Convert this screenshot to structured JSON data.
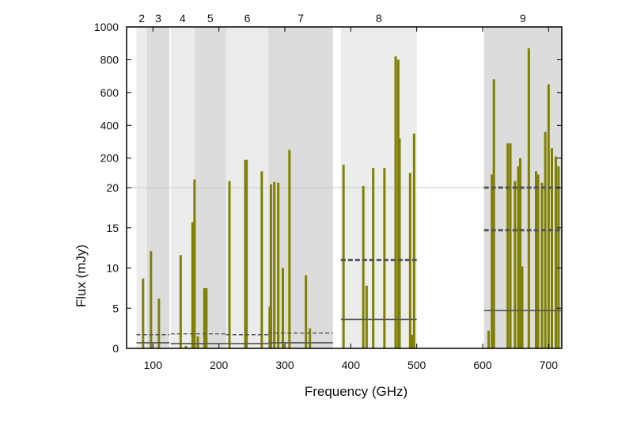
{
  "chart_data": {
    "type": "bar",
    "xlabel": "Frequency (GHz)",
    "ylabel": "Flux (mJy)",
    "xlim": [
      60,
      720
    ],
    "x_ticks": [
      100,
      200,
      300,
      400,
      500,
      600,
      700
    ],
    "y_ticks_lower": [
      0,
      5,
      10,
      15,
      20
    ],
    "y_ticks_upper": [
      200,
      400,
      600,
      800,
      1000
    ],
    "y_scale": "broken: linear 0-20 below break, linear 20-1000 above break",
    "colors": {
      "bars": "#808000",
      "band_light": "#ececec",
      "band_dark": "#dcdcdc",
      "threshold": "#555555",
      "frame": "#000000"
    },
    "bands": [
      {
        "label": "2",
        "x_start": 75,
        "x_end": 91,
        "shade": "light"
      },
      {
        "label": "3",
        "x_start": 91,
        "x_end": 125,
        "shade": "dark"
      },
      {
        "label": "4",
        "x_start": 127,
        "x_end": 163,
        "shade": "light"
      },
      {
        "label": "5",
        "x_start": 163,
        "x_end": 211,
        "shade": "dark"
      },
      {
        "label": "6",
        "x_start": 211,
        "x_end": 275,
        "shade": "light"
      },
      {
        "label": "7",
        "x_start": 275,
        "x_end": 373,
        "shade": "dark"
      },
      {
        "label": "8",
        "x_start": 385,
        "x_end": 500,
        "shade": "light"
      },
      {
        "label": "9",
        "x_start": 602,
        "x_end": 720,
        "shade": "dark"
      }
    ],
    "thresholds": [
      {
        "x_start": 75,
        "x_end": 125,
        "y": 0.7,
        "style": "solid"
      },
      {
        "x_start": 75,
        "x_end": 125,
        "y": 1.7,
        "style": "dashed"
      },
      {
        "x_start": 127,
        "x_end": 211,
        "y": 0.6,
        "style": "solid"
      },
      {
        "x_start": 127,
        "x_end": 211,
        "y": 1.8,
        "style": "dashed"
      },
      {
        "x_start": 211,
        "x_end": 275,
        "y": 0.6,
        "style": "solid"
      },
      {
        "x_start": 211,
        "x_end": 275,
        "y": 1.7,
        "style": "dashed"
      },
      {
        "x_start": 275,
        "x_end": 373,
        "y": 0.7,
        "style": "solid"
      },
      {
        "x_start": 275,
        "x_end": 373,
        "y": 1.9,
        "style": "dashed"
      },
      {
        "x_start": 385,
        "x_end": 500,
        "y": 3.6,
        "style": "solid"
      },
      {
        "x_start": 385,
        "x_end": 500,
        "y": 11.0,
        "style": "dashed-bold"
      },
      {
        "x_start": 602,
        "x_end": 720,
        "y": 4.7,
        "style": "solid"
      },
      {
        "x_start": 602,
        "x_end": 720,
        "y": 14.7,
        "style": "dashed-bold"
      },
      {
        "x_start": 602,
        "x_end": 720,
        "y": 20,
        "style": "dashed-bold"
      }
    ],
    "series": [
      {
        "x": [
          85,
          97,
          109,
          142,
          150,
          160,
          163,
          168,
          178,
          181,
          216,
          240,
          242,
          265,
          277,
          279,
          284,
          290,
          297,
          307,
          332,
          338,
          389,
          419,
          424,
          434,
          451,
          468,
          472,
          474,
          490,
          493,
          496,
          609,
          614,
          617,
          638,
          642,
          649,
          654,
          657,
          660,
          670,
          681,
          684,
          690,
          695,
          700,
          705,
          711,
          715
        ],
        "values": [
          8.7,
          12.1,
          6.2,
          11.6,
          0.3,
          15.7,
          70,
          1.5,
          7.5,
          7.5,
          60,
          190,
          190,
          120,
          5.2,
          40,
          55,
          50,
          10,
          250,
          9.1,
          2.5,
          160,
          30,
          7.8,
          140,
          140,
          820,
          800,
          320,
          110,
          1.7,
          350,
          2.2,
          100,
          680,
          290,
          290,
          60,
          150,
          200,
          10.2,
          870,
          120,
          100,
          50,
          360,
          650,
          260,
          210,
          150
        ]
      }
    ]
  }
}
